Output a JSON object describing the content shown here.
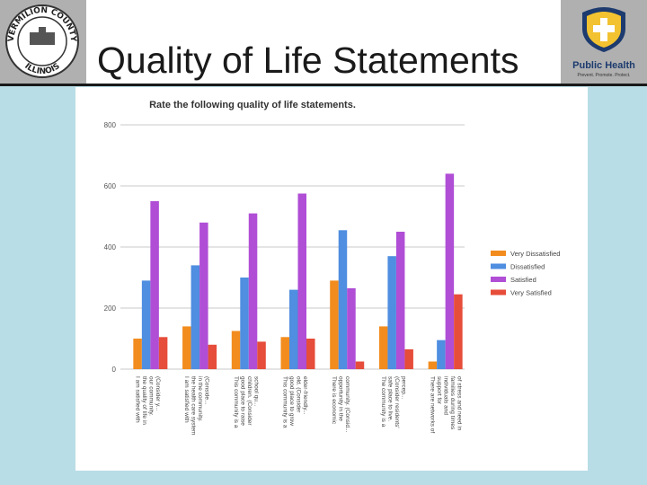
{
  "slide": {
    "title": "Quality of Life Statements",
    "left_logo": {
      "icon": "county-seal-icon",
      "top_text": "VERMILION COUNTY",
      "bottom_text": "ILLINOIS"
    },
    "right_logo": {
      "icon": "public-health-shield-icon",
      "text": "Public Health",
      "tagline": "Prevent. Promote. Protect."
    }
  },
  "chart_data": {
    "type": "bar",
    "title": "Rate the following quality of life statements.",
    "xlabel": "",
    "ylabel": "",
    "ylim": [
      0,
      800
    ],
    "yticks": [
      "800",
      "600",
      "400",
      "200",
      "0"
    ],
    "grid": true,
    "legend_position": "right",
    "categories": [
      "I am satisfied with the quality of life in our community. (Consider y...",
      "I am satisfied with the health care system in the community. (Conside...",
      "This community is a good place to raise children. (Consider school qu...",
      "This community is a good place to grow old. (Consider elder-friendly...",
      "There is economic opportunity in the community. (Consider locally...",
      "The community is a safe place to live. (Consider residents' percep...",
      "There are networks of support for individuals and families during times..."
    ],
    "category_ticks": [
      "I am satisfied with the quality of life in our community. (Consider y...",
      "I am satisfied with the health care system in the community. (Conside...",
      "This community is a good place to raise children. (Consider school qu...",
      "This community is a good place to grow old. (Consider elder-friendly...",
      "There is economic opportunity in the community. (Consid...",
      "The community is a safe place to live. (Consider residents' percep...",
      "There are networks of support for individuals and families during times of stress and need in the community"
    ],
    "series": [
      {
        "name": "Very Dissatisfied",
        "color": "#f28c1e",
        "values": [
          100,
          140,
          125,
          105,
          290,
          140,
          25
        ]
      },
      {
        "name": "Dissatisfied",
        "color": "#4f8ee0",
        "values": [
          290,
          340,
          300,
          260,
          455,
          370,
          95
        ]
      },
      {
        "name": "Satisfied",
        "color": "#b04ed6",
        "values": [
          550,
          480,
          510,
          575,
          265,
          450,
          640
        ]
      },
      {
        "name": "Very Satisfied",
        "color": "#e64d3a",
        "values": [
          105,
          80,
          90,
          100,
          25,
          65,
          245
        ]
      }
    ]
  }
}
